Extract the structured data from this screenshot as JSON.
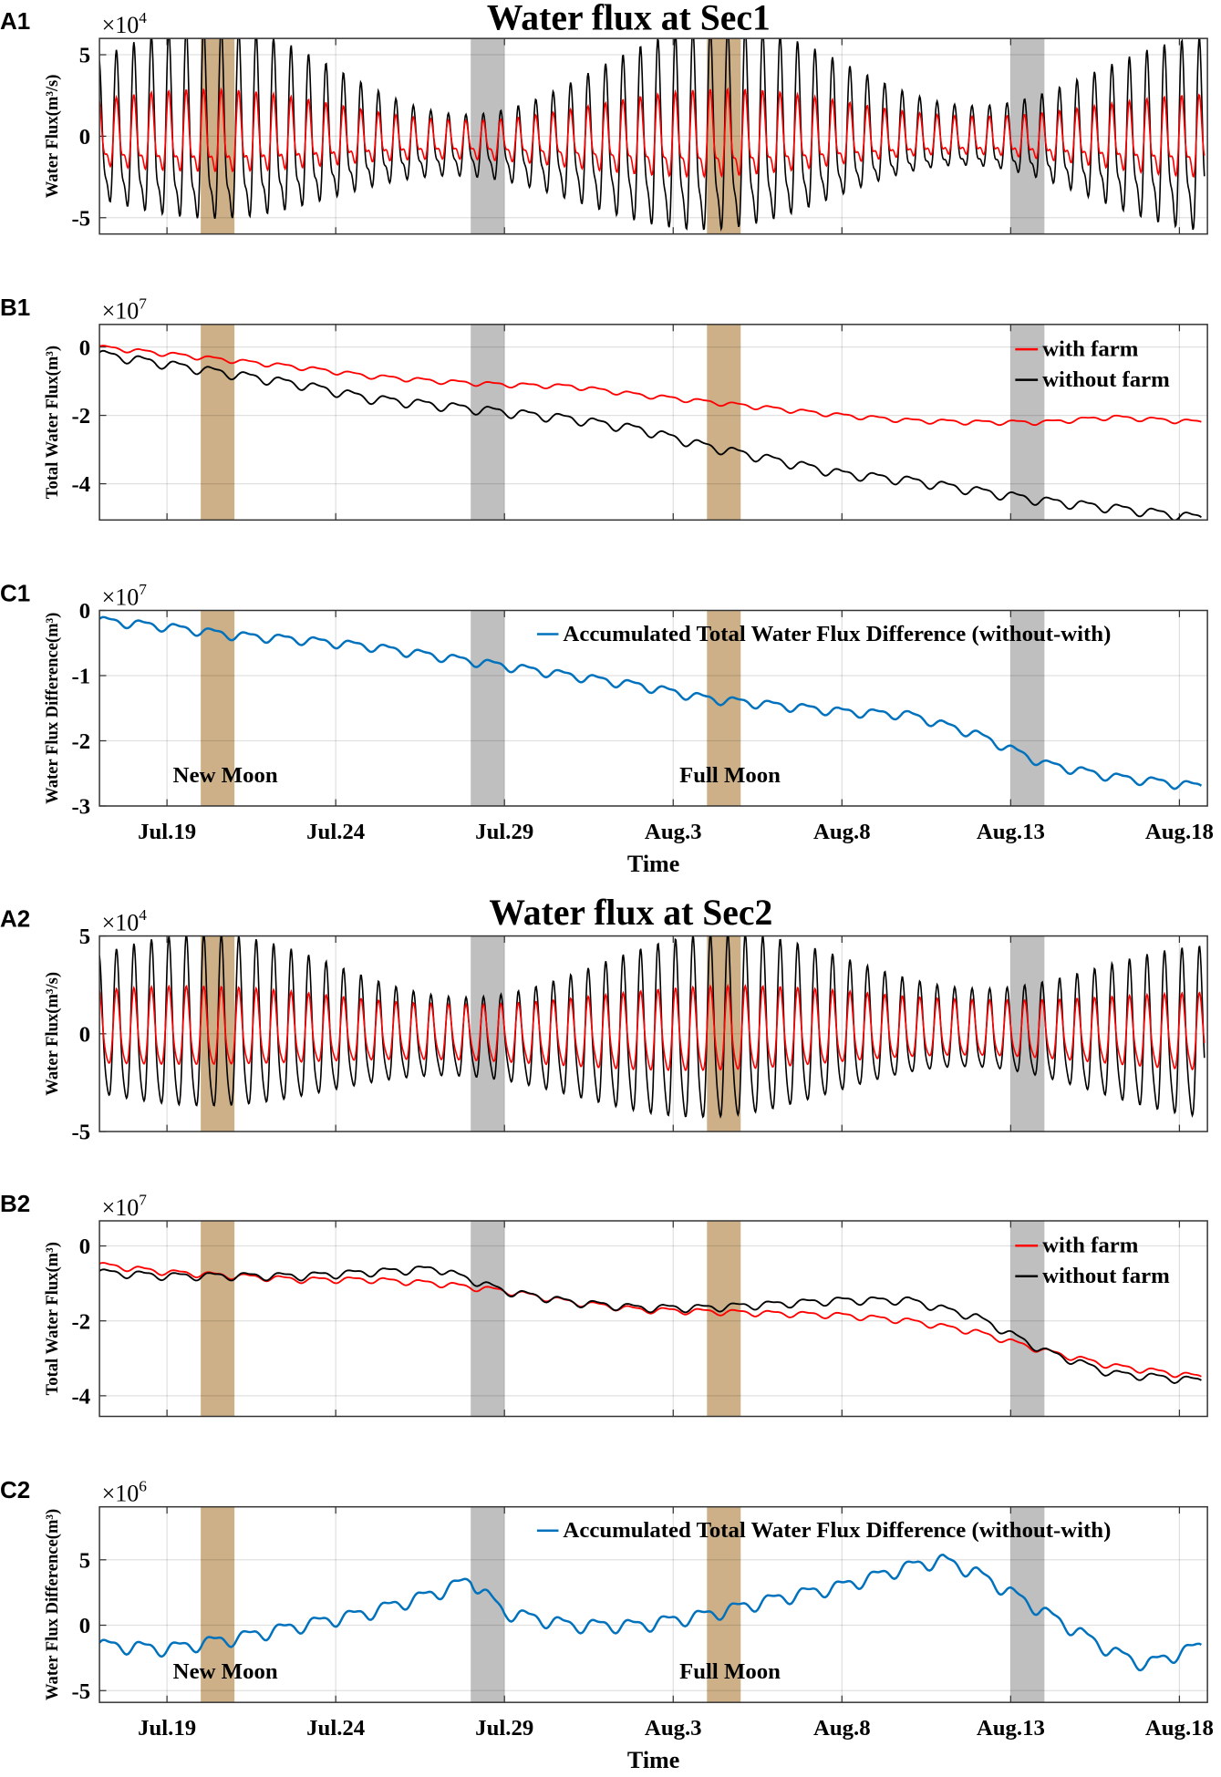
{
  "figure": {
    "titles": [
      "Water flux at Sec1",
      "Water flux at Sec2"
    ],
    "xlabel": "Time",
    "x_tick_labels": [
      "Jul.19",
      "Jul.24",
      "Jul.29",
      "Aug.3",
      "Aug.8",
      "Aug.13",
      "Aug.18"
    ],
    "x_tick_days": [
      2,
      7,
      12,
      17,
      22,
      27,
      32
    ],
    "x_unit": "days since Jul.17",
    "xlim": [
      0,
      32.83
    ],
    "bands": [
      {
        "start": 3,
        "end": 4,
        "color": "#cdb087",
        "label": "New Moon"
      },
      {
        "start": 11,
        "end": 12,
        "color": "#bfbfbf"
      },
      {
        "start": 18,
        "end": 19,
        "color": "#cdb087",
        "label": "Full Moon"
      },
      {
        "start": 27,
        "end": 28,
        "color": "#bfbfbf"
      }
    ],
    "colors": {
      "with_farm": "#ff0000",
      "without_farm": "#000000",
      "difference": "#0072bd"
    }
  },
  "chart_data": [
    {
      "id": "A1",
      "type": "line",
      "panel_label": "A1",
      "ylabel": "Water Flux(m³/s)",
      "exponent": "×10",
      "exponent_power": "4",
      "ylim": [
        -6,
        6
      ],
      "yticks": [
        5,
        0,
        -5
      ],
      "tick_labels": [
        "5",
        "0",
        "-5"
      ],
      "series": [
        {
          "name": "without farm",
          "color": "#000000",
          "tidal": {
            "period_days": 0.5175,
            "mean": -0.6,
            "amp": 3.6,
            "amp_mod": 0.5,
            "asym": 0.35
          }
        },
        {
          "name": "with farm",
          "color": "#ff0000",
          "tidal": {
            "period_days": 0.5175,
            "mean": -0.3,
            "amp": 1.6,
            "amp_mod": 0.35,
            "asym": 0.45
          }
        }
      ]
    },
    {
      "id": "B1",
      "type": "line",
      "panel_label": "B1",
      "ylabel": "Total Water Flux(m³)",
      "exponent": "×10",
      "exponent_power": "7",
      "ylim": [
        -5.06,
        0.66
      ],
      "yticks": [
        0,
        -2,
        -4
      ],
      "tick_labels": [
        "0",
        "-2",
        "-4"
      ],
      "legend": [
        "with farm",
        "without farm"
      ],
      "x": [
        0,
        2,
        4,
        6,
        8,
        10,
        12,
        14,
        16,
        18,
        20,
        22,
        24,
        26,
        28,
        30,
        32.7
      ],
      "series": [
        {
          "name": "with farm",
          "color": "#ff0000",
          "ripple": 0.06,
          "values": [
            0,
            -0.2,
            -0.4,
            -0.6,
            -0.85,
            -1.0,
            -1.1,
            -1.15,
            -1.4,
            -1.6,
            -1.8,
            -2.0,
            -2.15,
            -2.2,
            -2.2,
            -2.05,
            -2.2
          ]
        },
        {
          "name": "without farm",
          "color": "#000000",
          "ripple": 0.12,
          "values": [
            -0.2,
            -0.5,
            -0.8,
            -1.1,
            -1.5,
            -1.7,
            -1.9,
            -2.1,
            -2.4,
            -2.9,
            -3.3,
            -3.7,
            -3.9,
            -4.2,
            -4.5,
            -4.7,
            -5.0
          ]
        }
      ]
    },
    {
      "id": "C1",
      "type": "line",
      "panel_label": "C1",
      "ylabel": "Water Flux Difference(m³)",
      "exponent": "×10",
      "exponent_power": "7",
      "ylim": [
        -3,
        0
      ],
      "yticks": [
        0,
        -1,
        -2,
        -3
      ],
      "tick_labels": [
        "0",
        "-1",
        "-2",
        "-3"
      ],
      "legend": [
        "Accumulated Total Water Flux Difference (without-with)"
      ],
      "annotations": [
        "New Moon",
        "Full Moon"
      ],
      "x": [
        0,
        2,
        4,
        6,
        8,
        10,
        12,
        14,
        16,
        18,
        20,
        22,
        24,
        26,
        28,
        30,
        32.7
      ],
      "series": [
        {
          "name": "Accumulated Total Water Flux Difference (without-with)",
          "color": "#0072bd",
          "ripple": 0.06,
          "values": [
            -0.15,
            -0.25,
            -0.38,
            -0.45,
            -0.55,
            -0.7,
            -0.85,
            -1.0,
            -1.15,
            -1.35,
            -1.45,
            -1.55,
            -1.6,
            -1.9,
            -2.35,
            -2.55,
            -2.7
          ]
        }
      ]
    },
    {
      "id": "A2",
      "type": "line",
      "panel_label": "A2",
      "ylabel": "Water Flux(m³/s)",
      "exponent": "×10",
      "exponent_power": "4",
      "ylim": [
        -5,
        5
      ],
      "yticks": [
        5,
        0,
        -5
      ],
      "tick_labels": [
        "5",
        "0",
        "-5"
      ],
      "series": [
        {
          "name": "without farm",
          "color": "#000000",
          "tidal": {
            "period_days": 0.5175,
            "mean": -0.2,
            "amp": 3.2,
            "amp_mod": 0.35,
            "asym": 0.2
          }
        },
        {
          "name": "with farm",
          "color": "#ff0000",
          "tidal": {
            "period_days": 0.5175,
            "mean": 0.0,
            "amp": 1.7,
            "amp_mod": 0.15,
            "asym": 0.2
          }
        }
      ]
    },
    {
      "id": "B2",
      "type": "line",
      "panel_label": "B2",
      "ylabel": "Total Water Flux(m³)",
      "exponent": "×10",
      "exponent_power": "7",
      "ylim": [
        -4.55,
        0.67
      ],
      "yticks": [
        0,
        -2,
        -4
      ],
      "tick_labels": [
        "0",
        "-2",
        "-4"
      ],
      "legend": [
        "with farm",
        "without farm"
      ],
      "x": [
        0,
        2,
        4,
        6,
        8,
        10,
        12,
        14,
        16,
        18,
        20,
        22,
        24,
        26,
        28,
        30,
        32.7
      ],
      "series": [
        {
          "name": "with farm",
          "color": "#ff0000",
          "ripple": 0.07,
          "values": [
            -0.5,
            -0.7,
            -0.8,
            -0.9,
            -0.9,
            -1.0,
            -1.2,
            -1.5,
            -1.7,
            -1.75,
            -1.8,
            -1.85,
            -2.0,
            -2.3,
            -2.8,
            -3.2,
            -3.5
          ]
        },
        {
          "name": "without farm",
          "color": "#000000",
          "ripple": 0.09,
          "values": [
            -0.7,
            -0.8,
            -0.8,
            -0.8,
            -0.7,
            -0.6,
            -1.2,
            -1.5,
            -1.65,
            -1.65,
            -1.55,
            -1.45,
            -1.45,
            -1.9,
            -2.8,
            -3.4,
            -3.6
          ]
        }
      ]
    },
    {
      "id": "C2",
      "type": "line",
      "panel_label": "C2",
      "ylabel": "Water Flux Difference(m³)",
      "exponent": "×10",
      "exponent_power": "6",
      "ylim": [
        -5.9,
        9.05
      ],
      "yticks": [
        5,
        0,
        -5
      ],
      "tick_labels": [
        "5",
        "0",
        "-5"
      ],
      "legend": [
        "Accumulated Total Water Flux Difference (without-with)"
      ],
      "annotations": [
        "New Moon",
        "Full Moon"
      ],
      "x": [
        0,
        2,
        4,
        6,
        8,
        10,
        11,
        12,
        14,
        16,
        18,
        20,
        22,
        24,
        25,
        26,
        28,
        30,
        31,
        32.7
      ],
      "series": [
        {
          "name": "Accumulated Total Water Flux Difference (without-with)",
          "color": "#0072bd",
          "ripple": 0.45,
          "values": [
            -1.5,
            -1.8,
            -1.0,
            0,
            1.0,
            2.5,
            3.5,
            1.0,
            0,
            0,
            0.8,
            2.0,
            3.0,
            4.5,
            5.0,
            4.0,
            1.0,
            -2.0,
            -3.0,
            -1.5
          ]
        }
      ]
    }
  ]
}
